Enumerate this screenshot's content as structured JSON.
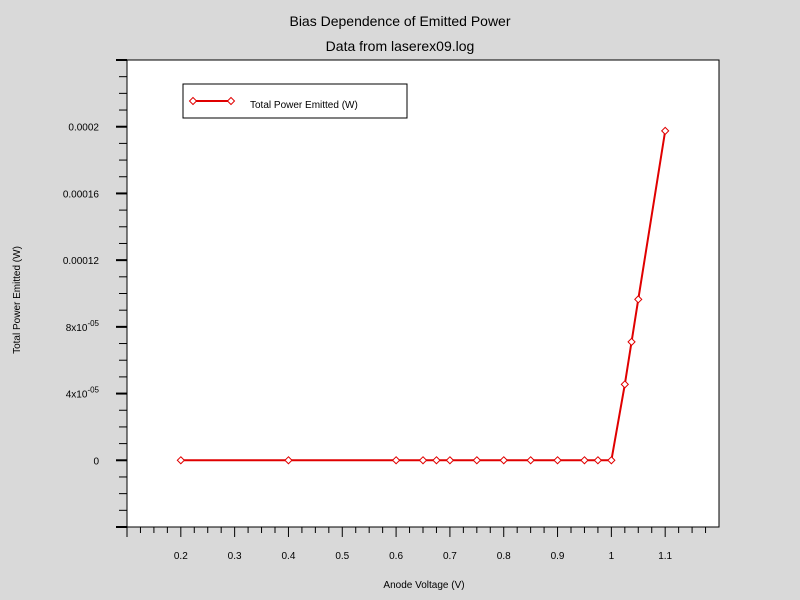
{
  "chart_data": {
    "type": "line",
    "title": "Bias Dependence of Emitted Power",
    "subtitle": "Data from laserex09.log",
    "xlabel": "Anode Voltage (V)",
    "ylabel": "Total Power Emitted (W)",
    "xlim": [
      0.1,
      1.2
    ],
    "ylim": [
      -4e-05,
      0.00024
    ],
    "x_ticks": [
      0.2,
      0.3,
      0.4,
      0.5,
      0.6,
      0.7,
      0.8,
      0.9,
      1,
      1.1
    ],
    "x_tick_labels": [
      "0.2",
      "0.3",
      "0.4",
      "0.5",
      "0.6",
      "0.7",
      "0.8",
      "0.9",
      "1",
      "1.1"
    ],
    "y_ticks": [
      0,
      4e-05,
      8e-05,
      0.00012,
      0.00016,
      0.0002
    ],
    "y_tick_labels": [
      {
        "base": "0",
        "exp": ""
      },
      {
        "base": "4x10",
        "exp": "-05"
      },
      {
        "base": "8x10",
        "exp": "-05"
      },
      {
        "base": "0.00012",
        "exp": ""
      },
      {
        "base": "0.00016",
        "exp": ""
      },
      {
        "base": "0.0002",
        "exp": ""
      }
    ],
    "grid": false,
    "legend_position": "top-left",
    "series": [
      {
        "name": "Total Power Emitted (W)",
        "color": "#e00000",
        "marker": "diamond",
        "x": [
          0.2,
          0.4,
          0.6,
          0.65,
          0.675,
          0.7,
          0.75,
          0.8,
          0.85,
          0.9,
          0.95,
          0.975,
          1.0,
          1.025,
          1.0375,
          1.05,
          1.1
        ],
        "y": [
          0,
          0,
          0,
          0,
          0,
          0,
          0,
          0,
          0,
          0,
          0,
          0,
          0,
          4.55e-05,
          7.1e-05,
          9.65e-05,
          0.0001975
        ]
      }
    ]
  }
}
